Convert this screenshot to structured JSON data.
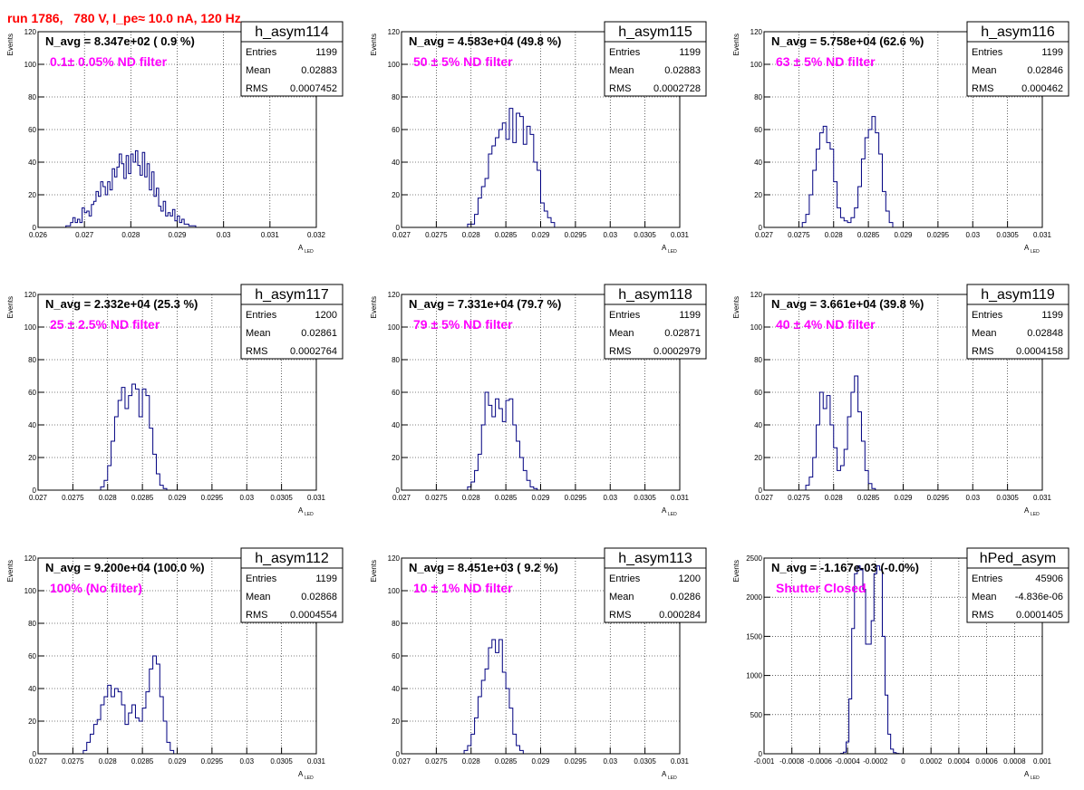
{
  "header": {
    "title": "run 1786,   780 V, I_pe≈ 10.0 nA, 120 Hz",
    "title_color": "#ff0000"
  },
  "colors": {
    "histogram": "#000080",
    "annotation": "#ff00ff",
    "grid": "#000000"
  },
  "stats_labels": {
    "entries": "Entries",
    "mean": "Mean",
    "rms": "RMS"
  },
  "y_axis_label": "Events",
  "x_axis_label": "A",
  "x_axis_label_sub": "LED",
  "chart_data": [
    {
      "type": "bar",
      "name": "h_asym114",
      "navg": "N_avg = 8.347e+02 ( 0.9 %)",
      "filter": "0.1± 0.05% ND filter",
      "entries": "1199",
      "mean": "0.02883",
      "rms": "0.0007452",
      "xlim": [
        0.026,
        0.032
      ],
      "ylim": [
        0,
        120
      ],
      "xticks": [
        "0.026",
        "0.027",
        "0.028",
        "0.029",
        "0.03",
        "0.031",
        "0.032"
      ],
      "yticks": [
        "0",
        "20",
        "40",
        "60",
        "80",
        "100",
        "120"
      ],
      "xlabel": "A",
      "xlabel_sub": "LED",
      "bin_start": 0.0266,
      "bin_width": 5e-05,
      "values": [
        1,
        1,
        3,
        6,
        3,
        5,
        3,
        12,
        9,
        10,
        7,
        14,
        16,
        22,
        19,
        28,
        25,
        20,
        28,
        23,
        36,
        31,
        37,
        45,
        39,
        30,
        44,
        33,
        45,
        40,
        47,
        38,
        32,
        46,
        31,
        39,
        23,
        34,
        19,
        24,
        13,
        10,
        16,
        7,
        9,
        7,
        11,
        4,
        7,
        3,
        5,
        2,
        2,
        1,
        1,
        1,
        0,
        0,
        0
      ]
    },
    {
      "type": "bar",
      "name": "h_asym115",
      "navg": "N_avg = 4.583e+04 (49.8 %)",
      "filter": "50 ± 5% ND filter",
      "entries": "1199",
      "mean": "0.02883",
      "rms": "0.0002728",
      "xlim": [
        0.027,
        0.031
      ],
      "ylim": [
        0,
        120
      ],
      "xticks": [
        "0.027",
        "0.0275",
        "0.028",
        "0.0285",
        "0.029",
        "0.0295",
        "0.03",
        "0.0305",
        "0.031"
      ],
      "yticks": [
        "0",
        "20",
        "40",
        "60",
        "80",
        "100",
        "120"
      ],
      "xlabel": "A",
      "xlabel_sub": "LED",
      "bin_start": 0.02795,
      "bin_width": 5e-05,
      "values": [
        2,
        2,
        8,
        18,
        25,
        30,
        45,
        50,
        55,
        60,
        64,
        54,
        73,
        52,
        70,
        68,
        51,
        62,
        57,
        40,
        35,
        15,
        10,
        6,
        3
      ]
    },
    {
      "type": "bar",
      "name": "h_asym116",
      "navg": "N_avg = 5.758e+04 (62.6 %)",
      "filter": "63 ± 5% ND filter",
      "entries": "1199",
      "mean": "0.02846",
      "rms": "0.000462",
      "xlim": [
        0.027,
        0.031
      ],
      "ylim": [
        0,
        120
      ],
      "xticks": [
        "0.027",
        "0.0275",
        "0.028",
        "0.0285",
        "0.029",
        "0.0295",
        "0.03",
        "0.0305",
        "0.031"
      ],
      "yticks": [
        "0",
        "20",
        "40",
        "60",
        "80",
        "100",
        "120"
      ],
      "xlabel": "A",
      "xlabel_sub": "LED",
      "bin_start": 0.02755,
      "bin_width": 5e-05,
      "values": [
        3,
        8,
        20,
        35,
        48,
        58,
        62,
        52,
        48,
        28,
        12,
        6,
        4,
        3,
        6,
        12,
        25,
        42,
        55,
        60,
        68,
        58,
        45,
        22,
        10,
        3
      ]
    },
    {
      "type": "bar",
      "name": "h_asym117",
      "navg": "N_avg = 2.332e+04 (25.3 %)",
      "filter": "25 ± 2.5% ND filter",
      "entries": "1200",
      "mean": "0.02861",
      "rms": "0.0002764",
      "xlim": [
        0.027,
        0.031
      ],
      "ylim": [
        0,
        120
      ],
      "xticks": [
        "0.027",
        "0.0275",
        "0.028",
        "0.0285",
        "0.029",
        "0.0295",
        "0.03",
        "0.0305",
        "0.031"
      ],
      "yticks": [
        "0",
        "20",
        "40",
        "60",
        "80",
        "100",
        "120"
      ],
      "xlabel": "A",
      "xlabel_sub": "LED",
      "bin_start": 0.0279,
      "bin_width": 5e-05,
      "values": [
        2,
        6,
        15,
        30,
        45,
        55,
        63,
        50,
        58,
        65,
        62,
        45,
        62,
        58,
        38,
        22,
        10,
        3,
        1
      ]
    },
    {
      "type": "bar",
      "name": "h_asym118",
      "navg": "N_avg = 7.331e+04 (79.7 %)",
      "filter": "79 ± 5% ND filter",
      "entries": "1199",
      "mean": "0.02871",
      "rms": "0.0002979",
      "xlim": [
        0.027,
        0.031
      ],
      "ylim": [
        0,
        120
      ],
      "xticks": [
        "0.027",
        "0.0275",
        "0.028",
        "0.0285",
        "0.029",
        "0.0295",
        "0.03",
        "0.0305",
        "0.031"
      ],
      "yticks": [
        "0",
        "20",
        "40",
        "60",
        "80",
        "100",
        "120"
      ],
      "xlabel": "A",
      "xlabel_sub": "LED",
      "bin_start": 0.02795,
      "bin_width": 5e-05,
      "values": [
        2,
        5,
        12,
        22,
        40,
        60,
        52,
        45,
        56,
        50,
        42,
        55,
        56,
        40,
        30,
        20,
        12,
        6,
        2,
        1
      ]
    },
    {
      "type": "bar",
      "name": "h_asym119",
      "navg": "N_avg = 3.661e+04 (39.8 %)",
      "filter": "40 ± 4% ND filter",
      "entries": "1199",
      "mean": "0.02848",
      "rms": "0.0004158",
      "xlim": [
        0.027,
        0.031
      ],
      "ylim": [
        0,
        120
      ],
      "xticks": [
        "0.027",
        "0.0275",
        "0.028",
        "0.0285",
        "0.029",
        "0.0295",
        "0.03",
        "0.0305",
        "0.031"
      ],
      "yticks": [
        "0",
        "20",
        "40",
        "60",
        "80",
        "100",
        "120"
      ],
      "xlabel": "A",
      "xlabel_sub": "LED",
      "bin_start": 0.0276,
      "bin_width": 5e-05,
      "values": [
        3,
        8,
        20,
        40,
        60,
        50,
        58,
        40,
        26,
        12,
        15,
        25,
        45,
        60,
        70,
        48,
        30,
        12,
        4,
        1
      ]
    },
    {
      "type": "bar",
      "name": "h_asym112",
      "navg": "N_avg = 9.200e+04 (100.0 %)",
      "filter": "100% (No filter)",
      "entries": "1199",
      "mean": "0.02868",
      "rms": "0.0004554",
      "xlim": [
        0.027,
        0.031
      ],
      "ylim": [
        0,
        120
      ],
      "xticks": [
        "0.027",
        "0.0275",
        "0.028",
        "0.0285",
        "0.029",
        "0.0295",
        "0.03",
        "0.0305",
        "0.031"
      ],
      "yticks": [
        "0",
        "20",
        "40",
        "60",
        "80",
        "100",
        "120"
      ],
      "xlabel": "A",
      "xlabel_sub": "LED",
      "bin_start": 0.02765,
      "bin_width": 5e-05,
      "values": [
        2,
        7,
        12,
        18,
        21,
        30,
        35,
        42,
        35,
        40,
        38,
        30,
        18,
        25,
        30,
        22,
        20,
        28,
        38,
        52,
        60,
        55,
        35,
        20,
        7,
        2
      ]
    },
    {
      "type": "bar",
      "name": "h_asym113",
      "navg": "N_avg = 8.451e+03 ( 9.2 %)",
      "filter": "10 ± 1% ND filter",
      "entries": "1200",
      "mean": "0.0286",
      "rms": "0.000284",
      "xlim": [
        0.027,
        0.031
      ],
      "ylim": [
        0,
        120
      ],
      "xticks": [
        "0.027",
        "0.0275",
        "0.028",
        "0.0285",
        "0.029",
        "0.0295",
        "0.03",
        "0.0305",
        "0.031"
      ],
      "yticks": [
        "0",
        "20",
        "40",
        "60",
        "80",
        "100",
        "120"
      ],
      "xlabel": "A",
      "xlabel_sub": "LED",
      "bin_start": 0.0279,
      "bin_width": 5e-05,
      "values": [
        2,
        5,
        12,
        22,
        35,
        45,
        52,
        65,
        70,
        62,
        70,
        50,
        40,
        28,
        12,
        5,
        2
      ]
    },
    {
      "type": "bar",
      "name": "hPed_asym",
      "navg": "N_avg = -1.167e-03 (-0.0%)",
      "filter": "Shutter Closed",
      "entries": "45906",
      "mean": "-4.836e-06",
      "rms": "0.0001405",
      "xlim": [
        -0.001,
        0.001
      ],
      "ylim": [
        0,
        2500
      ],
      "xticks": [
        "-0.001",
        "-0.0008",
        "-0.0006",
        "-0.0004",
        "-0.0002",
        "0",
        "0.0002",
        "0.0004",
        "0.0006",
        "0.0008",
        "0.001"
      ],
      "yticks": [
        "0",
        "500",
        "1000",
        "1500",
        "2000",
        "2500"
      ],
      "xlabel": "A",
      "xlabel_sub": "LED",
      "bin_start": -0.00045,
      "bin_width": 2e-05,
      "values": [
        5,
        20,
        150,
        700,
        1600,
        2300,
        2400,
        2350,
        2100,
        1400,
        1400,
        1700,
        2300,
        2400,
        2350,
        1500,
        750,
        250,
        60,
        15,
        5,
        2
      ]
    }
  ]
}
